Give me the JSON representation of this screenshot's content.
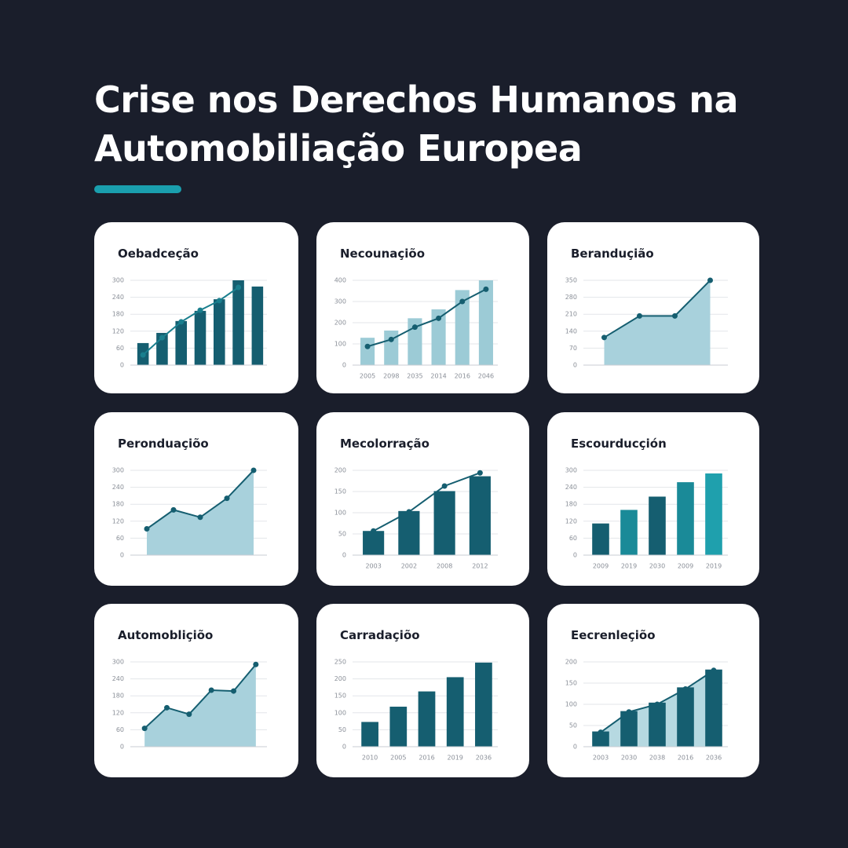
{
  "title": "Crise nos Derechos Humanos na Automobiliação Europea",
  "chart_data": [
    {
      "type": "combo",
      "title": "Oebadceção",
      "categories": [
        null,
        null,
        null,
        null,
        null,
        null,
        null
      ],
      "series": [
        {
          "type": "bar",
          "color": "#155e70",
          "values": [
            78,
            114,
            156,
            192,
            233,
            300,
            278
          ]
        },
        {
          "type": "line",
          "color": "#1a7f8e",
          "values": [
            36,
            97,
            153,
            194,
            228,
            275,
            null
          ]
        }
      ],
      "ylim": [
        0,
        300
      ],
      "yticks": [
        0,
        60,
        120,
        180,
        240,
        300
      ],
      "grid": true
    },
    {
      "type": "combo",
      "title": "Necounaçiõo",
      "categories": [
        "2005",
        "2098",
        "2035",
        "2014",
        "2016",
        "2046"
      ],
      "series": [
        {
          "type": "bar",
          "color": "#9ccbd6",
          "values": [
            129,
            163,
            221,
            263,
            354,
            400
          ]
        },
        {
          "type": "line",
          "color": "#155e70",
          "values": [
            88,
            121,
            179,
            221,
            300,
            358
          ]
        }
      ],
      "ylim": [
        0,
        400
      ],
      "yticks": [
        0,
        100,
        200,
        300,
        400
      ],
      "grid": true
    },
    {
      "type": "area",
      "title": "Beranduçião",
      "categories": [
        null,
        null,
        null,
        null
      ],
      "series": [
        {
          "type": "area",
          "color": "#155e70",
          "fill": "#a8d1dc",
          "values": [
            114,
            203,
            203,
            350
          ]
        }
      ],
      "ylim": [
        0,
        350
      ],
      "yticks": [
        0,
        70,
        140,
        210,
        280,
        350
      ],
      "grid": true
    },
    {
      "type": "area",
      "title": "Peronduaçiõo",
      "categories": [
        null,
        null,
        null,
        null,
        null
      ],
      "series": [
        {
          "type": "area",
          "color": "#155e70",
          "fill": "#a8d1dc",
          "values": [
            93,
            160,
            134,
            201,
            300
          ]
        }
      ],
      "ylim": [
        0,
        300
      ],
      "yticks": [
        0,
        60,
        120,
        180,
        240,
        300
      ],
      "grid": true
    },
    {
      "type": "combo",
      "title": "Mecolorração",
      "categories": [
        "2003",
        "2002",
        "2008",
        "2012"
      ],
      "series": [
        {
          "type": "bar",
          "color": "#155e70",
          "values": [
            57,
            104,
            151,
            186
          ]
        },
        {
          "type": "line",
          "color": "#155e70",
          "values": [
            57,
            102,
            163,
            194
          ]
        }
      ],
      "ylim": [
        0,
        200
      ],
      "yticks": [
        0,
        50,
        100,
        150,
        200
      ],
      "grid": true
    },
    {
      "type": "bar",
      "title": "Escourducçión",
      "categories": [
        "2009",
        "2019",
        "2030",
        "2009",
        "2019"
      ],
      "series": [
        {
          "type": "bar",
          "colors": [
            "#155e70",
            "#1a8a98",
            "#155e70",
            "#1a8a98",
            "#1fa0ad"
          ],
          "values": [
            112,
            160,
            207,
            258,
            289
          ]
        }
      ],
      "ylim": [
        0,
        300
      ],
      "yticks": [
        0,
        60,
        120,
        180,
        240,
        300
      ],
      "grid": true
    },
    {
      "type": "area",
      "title": "Automobliçiõo",
      "categories": [
        null,
        null,
        null,
        null,
        null,
        null
      ],
      "series": [
        {
          "type": "area",
          "color": "#155e70",
          "fill": "#a8d1dc",
          "values": [
            65,
            138,
            115,
            200,
            197,
            291
          ]
        }
      ],
      "ylim": [
        0,
        300
      ],
      "yticks": [
        0,
        60,
        120,
        180,
        240,
        300
      ],
      "grid": true
    },
    {
      "type": "bar",
      "title": "Carradaçiõo",
      "categories": [
        "2010",
        "2005",
        "2016",
        "2019",
        "2036"
      ],
      "series": [
        {
          "type": "bar",
          "color": "#155e70",
          "values": [
            73,
            118,
            163,
            205,
            248
          ]
        }
      ],
      "ylim": [
        0,
        250
      ],
      "yticks": [
        0,
        50,
        100,
        150,
        200,
        250
      ],
      "grid": true
    },
    {
      "type": "combo",
      "title": "Eecrenleçiõo",
      "categories": [
        "2003",
        "2030",
        "2038",
        "2016",
        "2036"
      ],
      "series": [
        {
          "type": "area",
          "color": "#155e70",
          "fill": "#b6d9e1",
          "values": [
            34,
            82,
            100,
            136,
            180
          ]
        },
        {
          "type": "bar",
          "color": "#155e70",
          "values": [
            36,
            84,
            104,
            140,
            182
          ]
        }
      ],
      "ylim": [
        0,
        200
      ],
      "yticks": [
        0,
        50,
        100,
        150,
        200
      ],
      "grid": true
    }
  ]
}
